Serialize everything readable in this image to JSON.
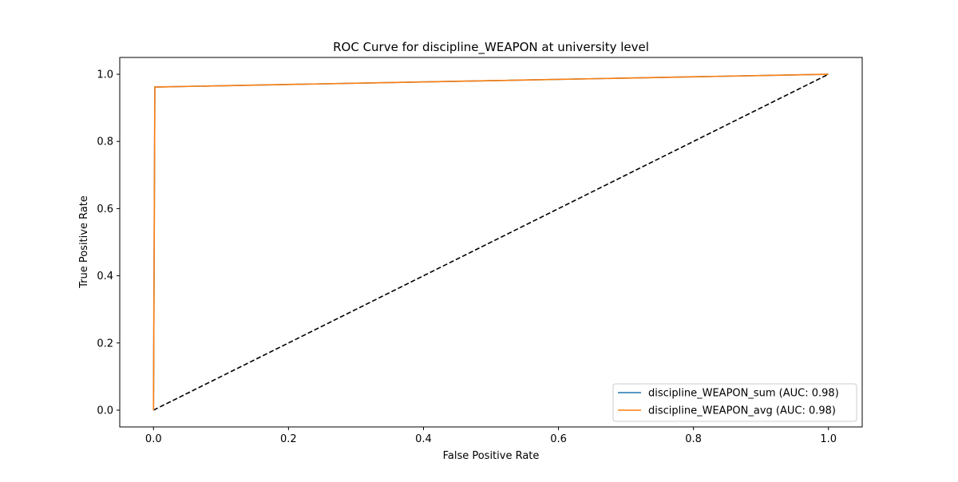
{
  "chart_data": {
    "type": "line",
    "title": "ROC Curve for discipline_WEAPON at university level",
    "xlabel": "False Positive Rate",
    "ylabel": "True Positive Rate",
    "xlim": [
      -0.05,
      1.05
    ],
    "ylim": [
      -0.05,
      1.05
    ],
    "xticks": [
      0.0,
      0.2,
      0.4,
      0.6,
      0.8,
      1.0
    ],
    "yticks": [
      0.0,
      0.2,
      0.4,
      0.6,
      0.8,
      1.0
    ],
    "xtick_labels": [
      "0.0",
      "0.2",
      "0.4",
      "0.6",
      "0.8",
      "1.0"
    ],
    "ytick_labels": [
      "0.0",
      "0.2",
      "0.4",
      "0.6",
      "0.8",
      "1.0"
    ],
    "grid": false,
    "legend_position": "lower-right",
    "series": [
      {
        "name": "discipline_WEAPON_sum (AUC: 0.98)",
        "color": "#1f77b4",
        "x": [
          0.0,
          0.002,
          1.0
        ],
        "y": [
          0.0,
          0.962,
          1.0
        ]
      },
      {
        "name": "discipline_WEAPON_avg (AUC: 0.98)",
        "color": "#ff7f0e",
        "x": [
          0.0,
          0.002,
          1.0
        ],
        "y": [
          0.0,
          0.962,
          1.0
        ]
      }
    ],
    "reference_line": {
      "color": "#000000",
      "style": "dashed",
      "x": [
        0.0,
        1.0
      ],
      "y": [
        0.0,
        1.0
      ]
    }
  }
}
